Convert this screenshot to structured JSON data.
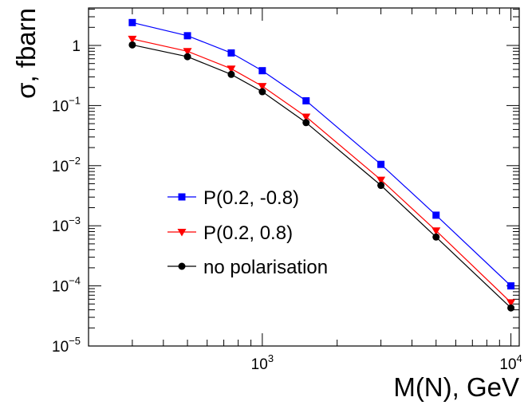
{
  "chart_data": {
    "type": "line",
    "xscale": "log",
    "yscale": "log",
    "xlim": [
      200,
      10800
    ],
    "ylim": [
      1e-05,
      4.2
    ],
    "xlabel": "M(N), GeV",
    "ylabel": "σ, fbarn",
    "x_ticks": [
      {
        "base": "10",
        "exp": "3",
        "value": 1000
      },
      {
        "base": "10",
        "exp": "4",
        "value": 10000
      }
    ],
    "y_ticks": [
      {
        "base": "1",
        "exp": "",
        "value": 1
      },
      {
        "base": "10",
        "exp": "−1",
        "value": 0.1
      },
      {
        "base": "10",
        "exp": "−2",
        "value": 0.01
      },
      {
        "base": "10",
        "exp": "−3",
        "value": 0.001
      },
      {
        "base": "10",
        "exp": "−4",
        "value": 0.0001
      },
      {
        "base": "10",
        "exp": "−5",
        "value": 1e-05
      }
    ],
    "x": [
      300,
      500,
      750,
      1000,
      1500,
      3000,
      5000,
      10000
    ],
    "series": [
      {
        "name": "P(0.2, -0.8)",
        "color": "#0000ff",
        "marker": "square",
        "values": [
          2.4,
          1.45,
          0.75,
          0.38,
          0.12,
          0.0105,
          0.0015,
          0.0001
        ]
      },
      {
        "name": "P(0.2, 0.8)",
        "color": "#ff0000",
        "marker": "triangle-down",
        "values": [
          1.28,
          0.8,
          0.41,
          0.21,
          0.065,
          0.0058,
          0.00083,
          5.3e-05
        ]
      },
      {
        "name": "no polarisation",
        "color": "#000000",
        "marker": "circle",
        "values": [
          1.02,
          0.65,
          0.33,
          0.17,
          0.052,
          0.0047,
          0.00065,
          4.3e-05
        ]
      }
    ],
    "legend": "lower-left-center",
    "grid": false
  }
}
